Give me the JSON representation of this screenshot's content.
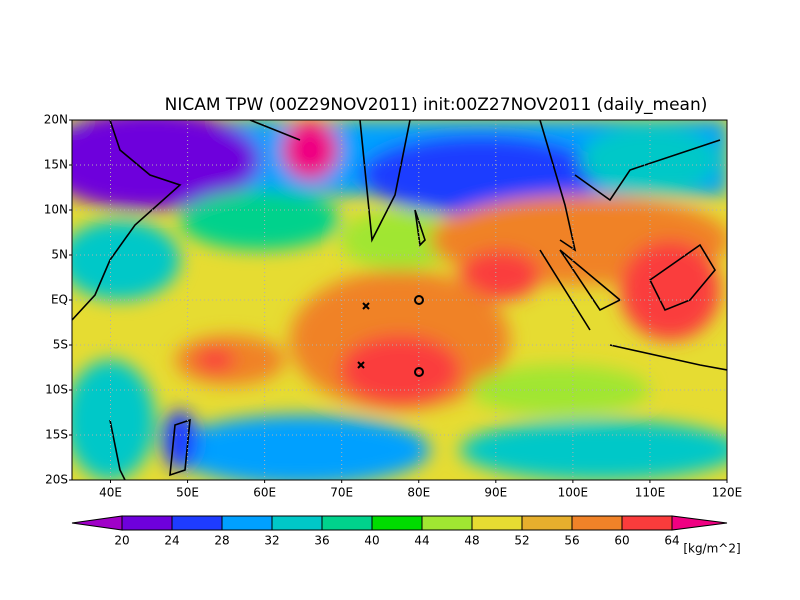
{
  "map": {
    "title": "NICAM TPW (00Z29NOV2011) init:00Z27NOV2011 (daily_mean)",
    "lat_labels": [
      "20N",
      "15N",
      "10N",
      "5N",
      "EQ",
      "5S",
      "10S",
      "15S",
      "20S"
    ],
    "lon_labels": [
      "40E",
      "50E",
      "60E",
      "70E",
      "80E",
      "90E",
      "100E",
      "110E",
      "120E"
    ],
    "colorbar": {
      "ticks": [
        20,
        24,
        28,
        32,
        36,
        40,
        44,
        48,
        52,
        56,
        60,
        64
      ],
      "colors": [
        "#a000c8",
        "#6e00dc",
        "#1e3cff",
        "#00a0ff",
        "#00c8c8",
        "#00d28c",
        "#00dc00",
        "#a0e632",
        "#e6dc32",
        "#e6af2d",
        "#f08228",
        "#fa3c3c",
        "#f00082"
      ],
      "unit": "[kg/m^2]"
    }
  }
}
